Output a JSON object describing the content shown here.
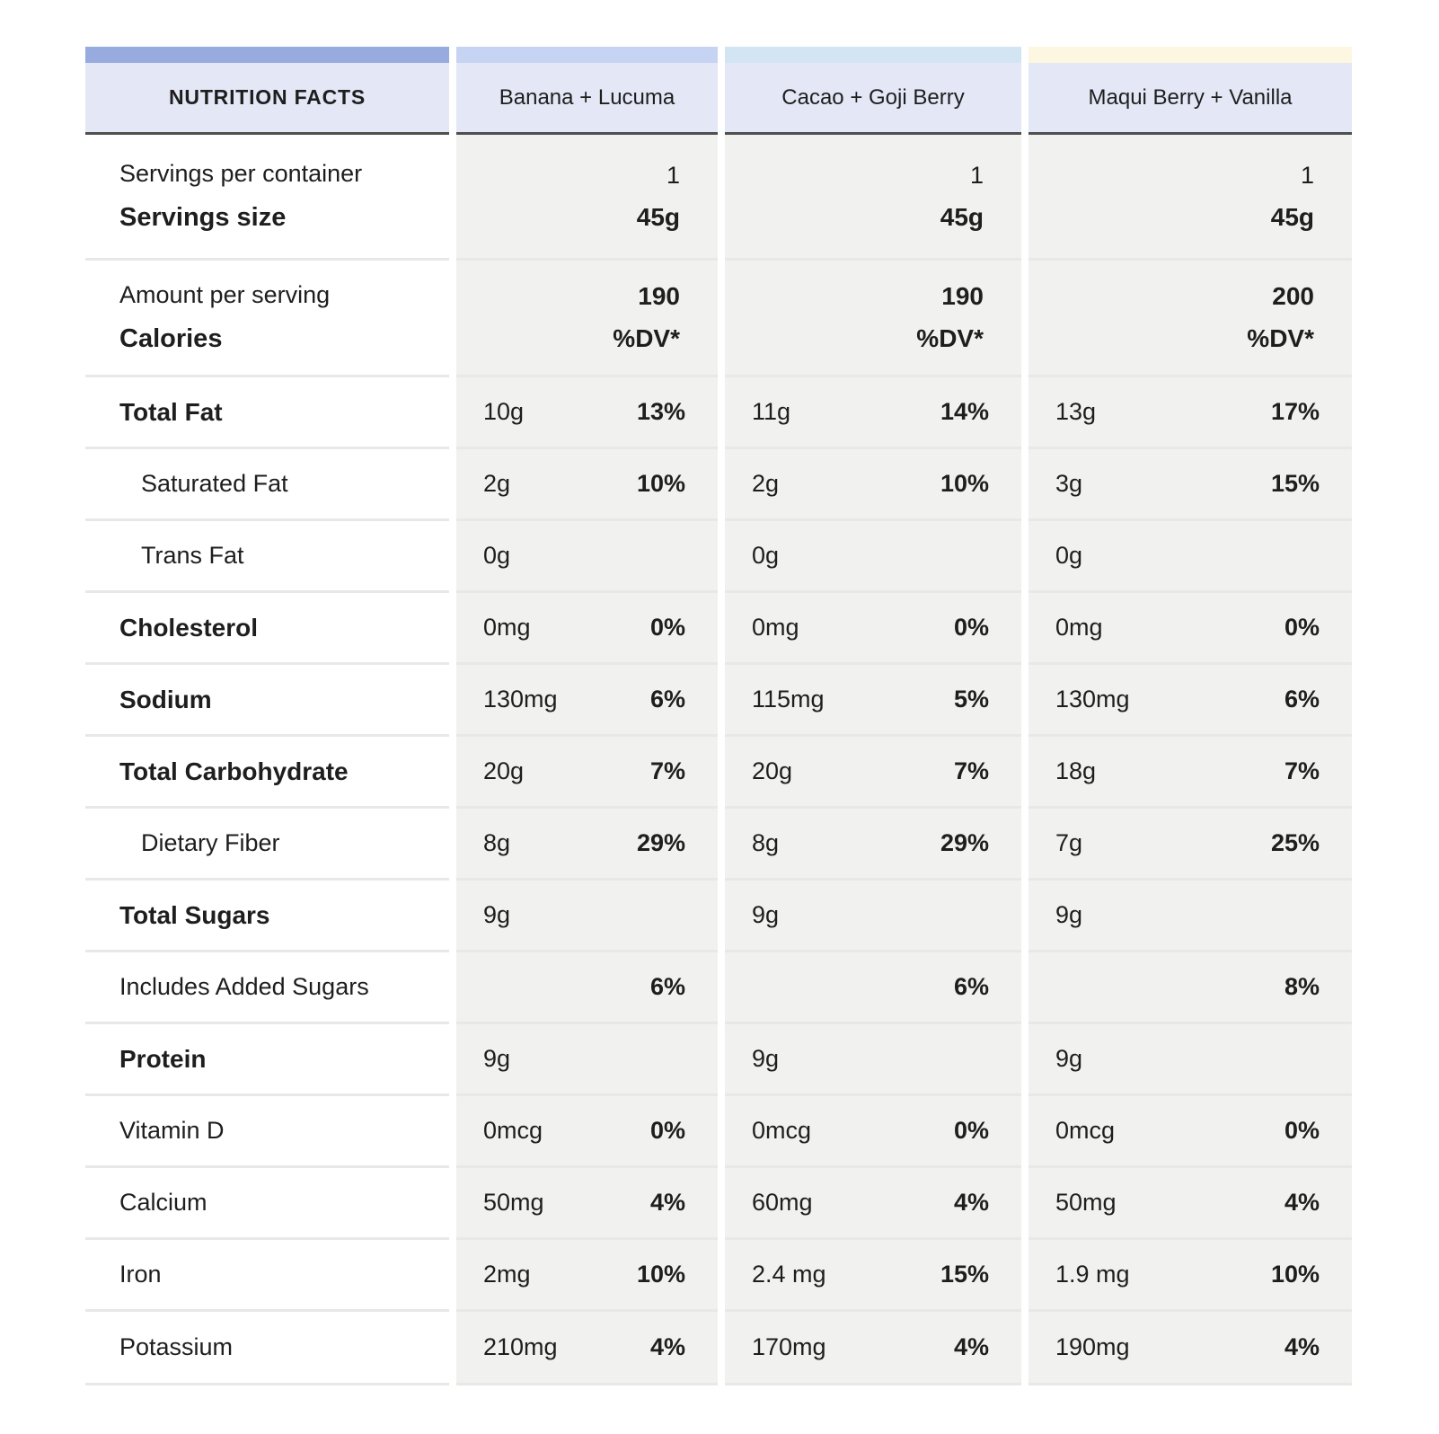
{
  "colors": {
    "strip_label_column": "#98abdf",
    "strip_banana": "#c6d3f2",
    "strip_cacao": "#d3e5f3",
    "strip_maqui": "#fdf6e0",
    "header_background": "#e4e8f6",
    "header_border": "#4f4f4f",
    "cell_background": "#f1f1ef",
    "row_separator": "#e8e8e6",
    "text": "#1e1e1e"
  },
  "table": {
    "corner_header": "NUTRITION FACTS",
    "products": [
      "Banana + Lucuma",
      "Cacao + Goji Berry",
      "Maqui Berry + Vanilla"
    ],
    "serving_row": {
      "label_line1": "Servings per container",
      "label_line2": "Servings size",
      "values": [
        {
          "line1": "1",
          "line2": "45g"
        },
        {
          "line1": "1",
          "line2": "45g"
        },
        {
          "line1": "1",
          "line2": "45g"
        }
      ]
    },
    "calories_row": {
      "label_line1": "Amount per serving",
      "label_line2": "Calories",
      "values": [
        {
          "line1": "190",
          "line2": "%DV*"
        },
        {
          "line1": "190",
          "line2": "%DV*"
        },
        {
          "line1": "200",
          "line2": "%DV*"
        }
      ]
    },
    "nutrient_rows": [
      {
        "label": "Total Fat",
        "style": "bold",
        "cells": [
          {
            "amount": "10g",
            "dv": "13%"
          },
          {
            "amount": "11g",
            "dv": "14%"
          },
          {
            "amount": "13g",
            "dv": "17%"
          }
        ]
      },
      {
        "label": "Saturated Fat",
        "style": "indent",
        "cells": [
          {
            "amount": "2g",
            "dv": "10%"
          },
          {
            "amount": "2g",
            "dv": "10%"
          },
          {
            "amount": "3g",
            "dv": "15%"
          }
        ]
      },
      {
        "label": "Trans Fat",
        "style": "indent",
        "cells": [
          {
            "amount": "0g",
            "dv": ""
          },
          {
            "amount": "0g",
            "dv": ""
          },
          {
            "amount": "0g",
            "dv": ""
          }
        ]
      },
      {
        "label": "Cholesterol",
        "style": "bold",
        "cells": [
          {
            "amount": "0mg",
            "dv": "0%"
          },
          {
            "amount": "0mg",
            "dv": "0%"
          },
          {
            "amount": "0mg",
            "dv": "0%"
          }
        ]
      },
      {
        "label": "Sodium",
        "style": "bold",
        "cells": [
          {
            "amount": "130mg",
            "dv": "6%"
          },
          {
            "amount": "115mg",
            "dv": "5%"
          },
          {
            "amount": "130mg",
            "dv": "6%"
          }
        ]
      },
      {
        "label": "Total Carbohydrate",
        "style": "bold",
        "cells": [
          {
            "amount": "20g",
            "dv": "7%"
          },
          {
            "amount": "20g",
            "dv": "7%"
          },
          {
            "amount": "18g",
            "dv": "7%"
          }
        ]
      },
      {
        "label": "Dietary Fiber",
        "style": "indent",
        "cells": [
          {
            "amount": "8g",
            "dv": "29%"
          },
          {
            "amount": "8g",
            "dv": "29%"
          },
          {
            "amount": "7g",
            "dv": "25%"
          }
        ]
      },
      {
        "label": "Total Sugars",
        "style": "bold",
        "cells": [
          {
            "amount": "9g",
            "dv": ""
          },
          {
            "amount": "9g",
            "dv": ""
          },
          {
            "amount": "9g",
            "dv": ""
          }
        ]
      },
      {
        "label": "Includes Added Sugars",
        "style": "plain",
        "cells": [
          {
            "amount": "",
            "dv": "6%"
          },
          {
            "amount": "",
            "dv": "6%"
          },
          {
            "amount": "",
            "dv": "8%"
          }
        ]
      },
      {
        "label": "Protein",
        "style": "bold",
        "cells": [
          {
            "amount": "9g",
            "dv": ""
          },
          {
            "amount": "9g",
            "dv": ""
          },
          {
            "amount": "9g",
            "dv": ""
          }
        ]
      },
      {
        "label": "Vitamin D",
        "style": "plain",
        "cells": [
          {
            "amount": "0mcg",
            "dv": "0%"
          },
          {
            "amount": "0mcg",
            "dv": "0%"
          },
          {
            "amount": "0mcg",
            "dv": "0%"
          }
        ]
      },
      {
        "label": "Calcium",
        "style": "plain",
        "cells": [
          {
            "amount": "50mg",
            "dv": "4%"
          },
          {
            "amount": "60mg",
            "dv": "4%"
          },
          {
            "amount": "50mg",
            "dv": "4%"
          }
        ]
      },
      {
        "label": "Iron",
        "style": "plain",
        "cells": [
          {
            "amount": "2mg",
            "dv": "10%"
          },
          {
            "amount": "2.4 mg",
            "dv": "15%"
          },
          {
            "amount": "1.9 mg",
            "dv": "10%"
          }
        ]
      },
      {
        "label": "Potassium",
        "style": "plain",
        "cells": [
          {
            "amount": "210mg",
            "dv": "4%"
          },
          {
            "amount": "170mg",
            "dv": "4%"
          },
          {
            "amount": "190mg",
            "dv": "4%"
          }
        ]
      }
    ]
  }
}
